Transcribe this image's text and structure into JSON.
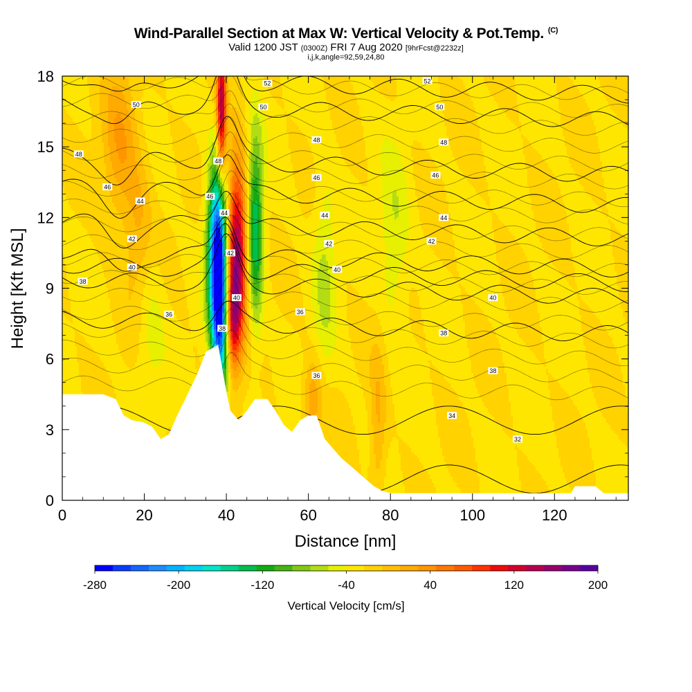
{
  "header": {
    "title": "Wind-Parallel Section at Max W: Vertical Velocity & Pot.Temp.",
    "title_mark": "(C)",
    "valid_prefix": "Valid 1200 JST",
    "valid_utc": "(0300Z)",
    "valid_date": "FRI 7 Aug 2020",
    "forecast": "[9hrFcst@2232z]",
    "params": "i,j,k,angle=92,59,24,80"
  },
  "chart_data": {
    "type": "heatmap",
    "xlabel": "Distance [nm]",
    "ylabel": "Height [Kft MSL]",
    "xlim": [
      0,
      138
    ],
    "ylim": [
      0,
      18
    ],
    "xticks": [
      0,
      20,
      40,
      60,
      80,
      100,
      120
    ],
    "yticks": [
      0,
      3,
      6,
      9,
      12,
      15,
      18
    ],
    "colorbar": {
      "label": "Vertical Velocity [cm/s]",
      "min": -280,
      "max": 200,
      "step": 20,
      "ticks": [
        -280,
        -200,
        -120,
        -40,
        40,
        120,
        200
      ],
      "colors": [
        "#0000ff",
        "#0a3cff",
        "#1466ff",
        "#1e8cff",
        "#00b4ff",
        "#00d2f0",
        "#00e6c8",
        "#00d28c",
        "#00be50",
        "#14aa14",
        "#46b414",
        "#82c814",
        "#b4dc14",
        "#e6f000",
        "#ffe600",
        "#ffd200",
        "#ffbe00",
        "#ffaa00",
        "#ff9600",
        "#ff7800",
        "#ff5a00",
        "#ff3200",
        "#f00a0a",
        "#d2002d",
        "#b40050",
        "#96006e",
        "#78008c",
        "#5a00a0"
      ]
    },
    "terrain": [
      [
        0,
        4.5
      ],
      [
        5,
        4.5
      ],
      [
        10,
        4.5
      ],
      [
        13,
        4.3
      ],
      [
        15,
        3.6
      ],
      [
        17,
        3.4
      ],
      [
        20,
        3.3
      ],
      [
        22,
        3.1
      ],
      [
        24,
        2.6
      ],
      [
        26,
        2.8
      ],
      [
        28,
        3.6
      ],
      [
        30,
        4.3
      ],
      [
        33,
        5.4
      ],
      [
        35,
        6.3
      ],
      [
        37,
        6.5
      ],
      [
        38,
        6.6
      ],
      [
        39,
        5.6
      ],
      [
        40,
        4.6
      ],
      [
        41,
        3.8
      ],
      [
        43,
        3.4
      ],
      [
        45,
        3.8
      ],
      [
        47,
        4.3
      ],
      [
        50,
        4.3
      ],
      [
        52,
        3.8
      ],
      [
        54,
        3.2
      ],
      [
        56,
        2.9
      ],
      [
        58,
        3.4
      ],
      [
        60,
        3.6
      ],
      [
        62,
        3.6
      ],
      [
        64,
        2.6
      ],
      [
        66,
        2.2
      ],
      [
        68,
        1.8
      ],
      [
        70,
        1.5
      ],
      [
        72,
        1.2
      ],
      [
        74,
        0.9
      ],
      [
        76,
        0.6
      ],
      [
        78,
        0.4
      ],
      [
        80,
        0.3
      ],
      [
        85,
        0.3
      ],
      [
        90,
        0.3
      ],
      [
        100,
        0.3
      ],
      [
        110,
        0.3
      ],
      [
        124,
        0.3
      ],
      [
        125,
        0.6
      ],
      [
        130,
        0.6
      ],
      [
        132,
        0.3
      ],
      [
        138,
        0.3
      ]
    ],
    "features": [
      {
        "label": "downdraft core",
        "x": 38.5,
        "y": 8.8,
        "value": -280,
        "sx": 1.4,
        "sy": 3.2
      },
      {
        "label": "downdraft band lower",
        "x": 37.2,
        "y": 10.5,
        "value": -150,
        "sx": 1.6,
        "sy": 2.5
      },
      {
        "label": "updraft core upper",
        "x": 38.8,
        "y": 16.5,
        "value": 200,
        "sx": 0.8,
        "sy": 2.2
      },
      {
        "label": "updraft core main",
        "x": 42.5,
        "y": 10.5,
        "value": 220,
        "sx": 1.8,
        "sy": 2.6
      },
      {
        "label": "updraft low",
        "x": 41.5,
        "y": 7.5,
        "value": 110,
        "sx": 1.2,
        "sy": 1.4
      },
      {
        "label": "downdraft flank",
        "x": 47,
        "y": 11.5,
        "value": -140,
        "sx": 1.4,
        "sy": 2.8
      },
      {
        "label": "updraft left upper",
        "x": 14,
        "y": 15,
        "value": 60,
        "sx": 3,
        "sy": 2.5
      },
      {
        "label": "updraft left mid",
        "x": 19,
        "y": 11,
        "value": 50,
        "sx": 2.5,
        "sy": 2.5
      },
      {
        "label": "downdraft left",
        "x": 21,
        "y": 8,
        "value": -35,
        "sx": 2.5,
        "sy": 3
      },
      {
        "label": "updraft near 60",
        "x": 61,
        "y": 4.2,
        "value": 60,
        "sx": 1.6,
        "sy": 1.2
      },
      {
        "label": "downdraft 60s",
        "x": 64,
        "y": 10,
        "value": -40,
        "sx": 2,
        "sy": 3
      },
      {
        "label": "downdraft 80s",
        "x": 81,
        "y": 11,
        "value": -40,
        "sx": 2.5,
        "sy": 2.5
      },
      {
        "label": "updraft 77",
        "x": 77,
        "y": 3,
        "value": 45,
        "sx": 1.4,
        "sy": 2.5
      }
    ],
    "isentropes": [
      {
        "theta": 32,
        "y0": 0.9,
        "label_x": 112
      },
      {
        "theta": 34,
        "y0": 3.4,
        "label_x": 95
      },
      {
        "theta": 36,
        "y0": 7.7,
        "label_x": 30
      },
      {
        "theta": 38,
        "y0": 9.4,
        "label_x": 6
      },
      {
        "theta": 40,
        "y0": 10.0,
        "label_x": 17
      },
      {
        "theta": 42,
        "y0": 10.6,
        "label_x": 17
      },
      {
        "theta": 44,
        "y0": 11.9,
        "label_x": 19
      },
      {
        "theta": 46,
        "y0": 13.3,
        "label_x": 11
      },
      {
        "theta": 48,
        "y0": 14.6,
        "label_x": 4
      },
      {
        "theta": 50,
        "y0": 16.9,
        "label_x": 18
      },
      {
        "theta": 52,
        "y0": 18.0,
        "label_x": 50
      }
    ],
    "contour_labels": [
      {
        "text": "52",
        "x": 50,
        "y": 17.7
      },
      {
        "text": "52",
        "x": 89,
        "y": 17.8
      },
      {
        "text": "50",
        "x": 18,
        "y": 16.8
      },
      {
        "text": "50",
        "x": 49,
        "y": 16.7
      },
      {
        "text": "50",
        "x": 92,
        "y": 16.7
      },
      {
        "text": "48",
        "x": 4,
        "y": 14.7
      },
      {
        "text": "48",
        "x": 62,
        "y": 15.3
      },
      {
        "text": "48",
        "x": 93,
        "y": 15.2
      },
      {
        "text": "48",
        "x": 38,
        "y": 14.4
      },
      {
        "text": "46",
        "x": 11,
        "y": 13.3
      },
      {
        "text": "46",
        "x": 62,
        "y": 13.7
      },
      {
        "text": "46",
        "x": 91,
        "y": 13.8
      },
      {
        "text": "46",
        "x": 36,
        "y": 12.9
      },
      {
        "text": "44",
        "x": 19,
        "y": 12.7
      },
      {
        "text": "44",
        "x": 64,
        "y": 12.1
      },
      {
        "text": "44",
        "x": 93,
        "y": 12.0
      },
      {
        "text": "44",
        "x": 39.5,
        "y": 12.2
      },
      {
        "text": "42",
        "x": 17,
        "y": 11.1
      },
      {
        "text": "42",
        "x": 65,
        "y": 10.9
      },
      {
        "text": "42",
        "x": 90,
        "y": 11.0
      },
      {
        "text": "42",
        "x": 41,
        "y": 10.5
      },
      {
        "text": "40",
        "x": 17,
        "y": 9.9
      },
      {
        "text": "40",
        "x": 67,
        "y": 9.8
      },
      {
        "text": "40",
        "x": 105,
        "y": 8.6
      },
      {
        "text": "40",
        "x": 42.5,
        "y": 8.6
      },
      {
        "text": "38",
        "x": 5,
        "y": 9.3
      },
      {
        "text": "38",
        "x": 93,
        "y": 7.1
      },
      {
        "text": "38",
        "x": 105,
        "y": 5.5
      },
      {
        "text": "38",
        "x": 39,
        "y": 7.3
      },
      {
        "text": "36",
        "x": 26,
        "y": 7.9
      },
      {
        "text": "36",
        "x": 58,
        "y": 8.0
      },
      {
        "text": "36",
        "x": 62,
        "y": 5.3
      },
      {
        "text": "34",
        "x": 95,
        "y": 3.6
      },
      {
        "text": "32",
        "x": 111,
        "y": 2.6
      }
    ]
  }
}
